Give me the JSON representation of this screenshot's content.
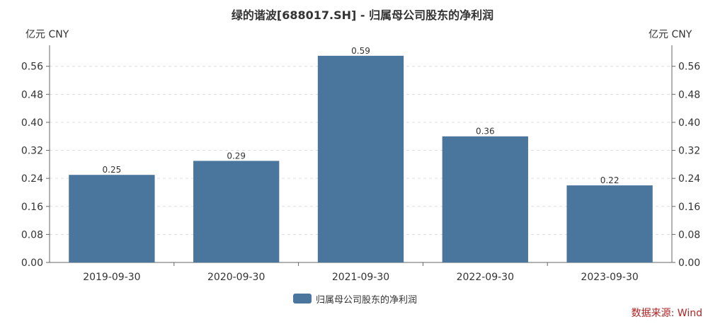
{
  "chart_data": {
    "type": "bar",
    "title": "绿的谐波[688017.SH] - 归属母公司股东的净利润",
    "categories": [
      "2019-09-30",
      "2020-09-30",
      "2021-09-30",
      "2022-09-30",
      "2023-09-30"
    ],
    "series": [
      {
        "name": "归属母公司股东的净利润",
        "values": [
          0.25,
          0.29,
          0.59,
          0.36,
          0.22
        ]
      }
    ],
    "data_labels": [
      "0.25",
      "0.29",
      "0.59",
      "0.36",
      "0.22"
    ],
    "y_unit_left": "亿元  CNY",
    "y_unit_right": "亿元  CNY",
    "yticks": [
      "0.00",
      "0.08",
      "0.16",
      "0.24",
      "0.32",
      "0.40",
      "0.48",
      "0.56"
    ],
    "ylim": [
      0,
      0.62
    ],
    "grid": true,
    "legend_position": "bottom-center",
    "bar_color": "#4a759c",
    "source": "数据来源: Wind"
  }
}
